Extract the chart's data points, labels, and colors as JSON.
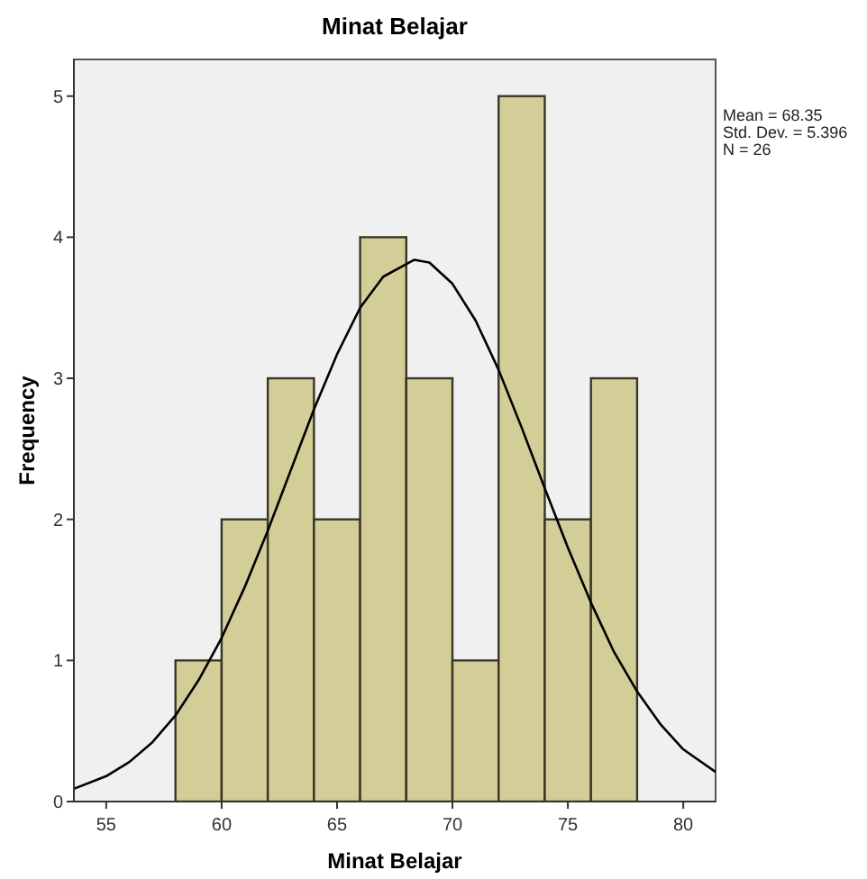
{
  "chart_data": {
    "type": "histogram",
    "title": "Minat Belajar",
    "xlabel": "Minat Belajar",
    "ylabel": "Frequency",
    "bins": [
      58,
      60,
      62,
      64,
      66,
      68,
      70,
      72,
      74,
      76,
      78
    ],
    "xlim": [
      53.6,
      81.4
    ],
    "xticks": [
      55,
      60,
      65,
      70,
      75,
      80
    ],
    "ylim": [
      0,
      5.26
    ],
    "yticks": [
      0,
      1,
      2,
      3,
      4,
      5
    ],
    "grid": false,
    "annotations": [
      "Mean = 68.35",
      "Std. Dev. = 5.396",
      "N = 26"
    ],
    "series": [
      {
        "color": "#d3ce97",
        "values": [
          1,
          2,
          3,
          2,
          4,
          3,
          1,
          5,
          2,
          3
        ]
      },
      {
        "type": "line",
        "color": "#000000",
        "x": [
          53.6,
          55,
          56,
          57,
          58,
          59,
          60,
          61,
          62,
          63,
          64,
          65,
          66,
          67,
          68.35,
          69,
          70,
          71,
          72,
          73,
          74,
          75,
          76,
          77,
          78,
          79,
          80,
          81.4
        ],
        "values": [
          0.09,
          0.18,
          0.28,
          0.42,
          0.61,
          0.86,
          1.16,
          1.52,
          1.92,
          2.35,
          2.78,
          3.17,
          3.5,
          3.72,
          3.84,
          3.82,
          3.67,
          3.41,
          3.06,
          2.65,
          2.22,
          1.8,
          1.41,
          1.06,
          0.78,
          0.55,
          0.37,
          0.21
        ]
      }
    ]
  }
}
